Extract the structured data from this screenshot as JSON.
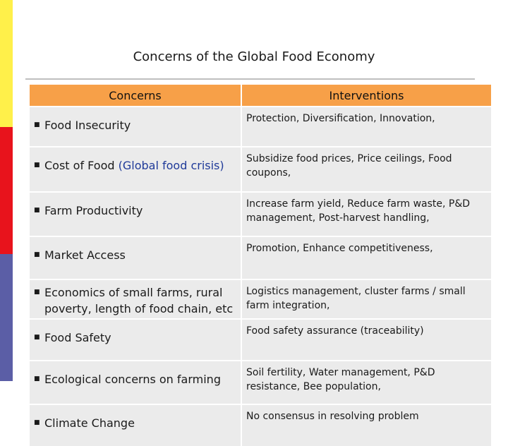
{
  "title": "Concerns of the Global Food Economy",
  "headers": {
    "concerns": "Concerns",
    "interventions": "Interventions"
  },
  "rows": [
    {
      "concern": "Food Insecurity",
      "intervention": "Protection, Diversification, Innovation,"
    },
    {
      "concern": "Cost of Food ",
      "concern_note": "(Global food crisis)",
      "intervention": "Subsidize food prices, Price ceilings, Food coupons,"
    },
    {
      "concern": "Farm Productivity",
      "intervention": "Increase farm yield, Reduce farm waste, P&D management, Post-harvest handling,"
    },
    {
      "concern": "Market Access",
      "intervention": "Promotion, Enhance competitiveness,"
    },
    {
      "concern": "Economics of small farms, rural poverty, length of food chain, etc",
      "intervention": "Logistics management, cluster farms / small farm integration,"
    },
    {
      "concern": "Food Safety",
      "intervention": "Food safety assurance (traceability)"
    },
    {
      "concern": "Ecological concerns on farming",
      "intervention": "Soil fertility, Water management, P&D resistance, Bee population,"
    },
    {
      "concern": "Climate Change",
      "intervention": "No consensus in resolving problem"
    }
  ],
  "colors": {
    "header": "#f7a048",
    "row": "#ebebeb",
    "stripe_yellow": "#fff04a",
    "stripe_red": "#e8131c",
    "stripe_blue": "#5b5ea6",
    "note": "#1f3a99"
  },
  "icons": {
    "bullet": "square-bullet-icon"
  }
}
